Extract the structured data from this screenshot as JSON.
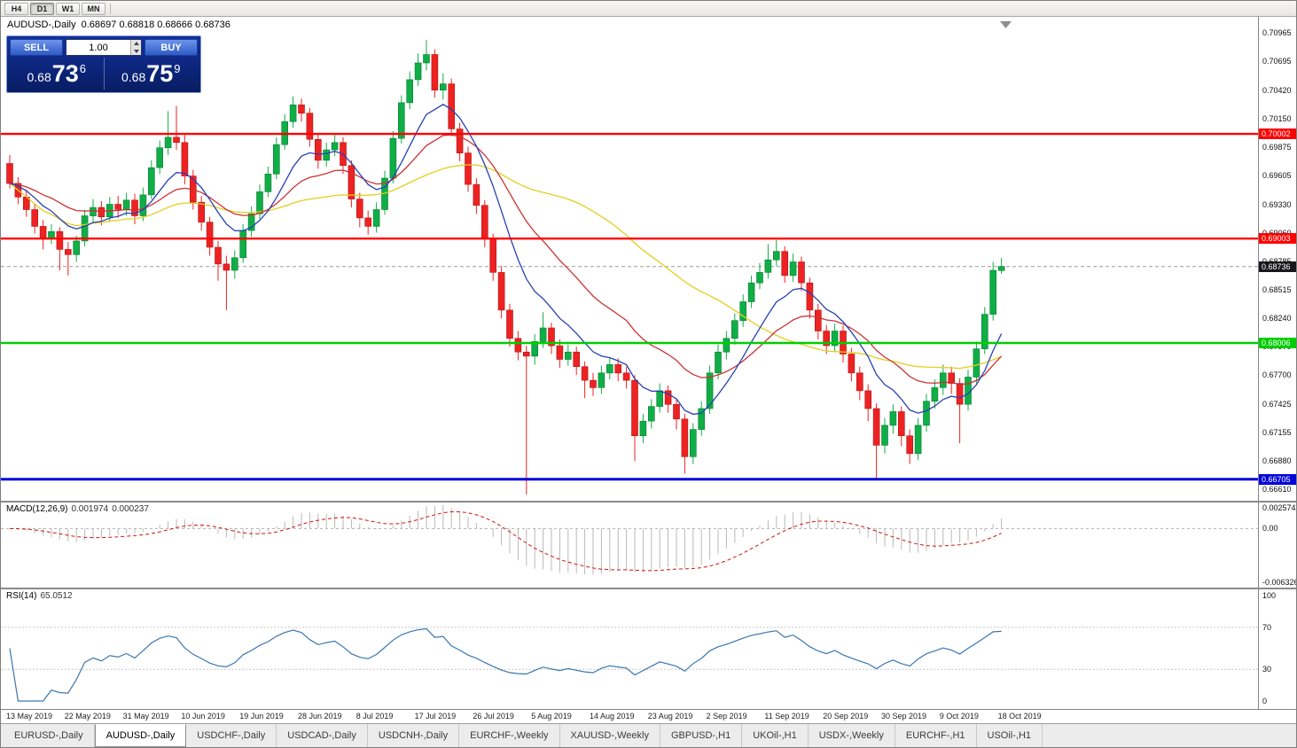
{
  "toolbar": {
    "timeframes": [
      "H4",
      "D1",
      "W1",
      "MN"
    ],
    "active_timeframe": "D1"
  },
  "chart": {
    "title_symbol": "AUDUSD-,Daily",
    "title_ohlc": "0.68697 0.68818 0.68666 0.68736"
  },
  "trade_panel": {
    "sell_label": "SELL",
    "buy_label": "BUY",
    "volume": "1.00",
    "sell_price": {
      "prefix": "0.68",
      "big": "73",
      "sup": "6"
    },
    "buy_price": {
      "prefix": "0.68",
      "big": "75",
      "sup": "9"
    }
  },
  "macd": {
    "name": "MACD(12,26,9)",
    "value_main": "0.001974",
    "value_signal": "0.000237"
  },
  "rsi": {
    "name": "RSI(14)",
    "value": "65.0512"
  },
  "tabs": [
    {
      "label": "EURUSD-,Daily",
      "active": false
    },
    {
      "label": "AUDUSD-,Daily",
      "active": true
    },
    {
      "label": "USDCHF-,Daily",
      "active": false
    },
    {
      "label": "USDCAD-,Daily",
      "active": false
    },
    {
      "label": "USDCNH-,Daily",
      "active": false
    },
    {
      "label": "EURCHF-,Weekly",
      "active": false
    },
    {
      "label": "XAUUSD-,Weekly",
      "active": false
    },
    {
      "label": "GBPUSD-,H1",
      "active": false
    },
    {
      "label": "UKOil-,H1",
      "active": false
    },
    {
      "label": "USDX-,Weekly",
      "active": false
    },
    {
      "label": "EURCHF-,H1",
      "active": false
    },
    {
      "label": "USOil-,H1",
      "active": false
    }
  ],
  "chart_data": {
    "type": "candlestick",
    "symbol": "AUDUSD",
    "timeframe": "Daily",
    "price_range": [
      0.665,
      0.7112
    ],
    "price_ticks": [
      "0.70965",
      "0.70695",
      "0.70420",
      "0.70150",
      "0.69875",
      "0.69605",
      "0.69330",
      "0.69060",
      "0.68785",
      "0.68515",
      "0.68240",
      "0.67970",
      "0.67700",
      "0.67425",
      "0.67155",
      "0.66880",
      "0.66610"
    ],
    "date_labels": [
      "13 May 2019",
      "22 May 2019",
      "31 May 2019",
      "10 Jun 2019",
      "19 Jun 2019",
      "28 Jun 2019",
      "8 Jul 2019",
      "17 Jul 2019",
      "26 Jul 2019",
      "5 Aug 2019",
      "14 Aug 2019",
      "23 Aug 2019",
      "2 Sep 2019",
      "11 Sep 2019",
      "20 Sep 2019",
      "30 Sep 2019",
      "9 Oct 2019",
      "18 Oct 2019"
    ],
    "candles_per_label": 7,
    "current_price": {
      "value": 0.68736,
      "label": "0.68736",
      "badge_color": "#17171c"
    },
    "levels": [
      {
        "label": "0.70002",
        "value": 0.70002,
        "color": "#ff0000",
        "line_width": 2.4
      },
      {
        "label": "0.69003",
        "value": 0.69003,
        "color": "#ff0000",
        "line_width": 2.4
      },
      {
        "label": "0.68006",
        "value": 0.68006,
        "color": "#00ce00",
        "line_width": 2.4
      },
      {
        "label": "0.66705",
        "value": 0.66705,
        "color": "#0000dd",
        "line_width": 3
      }
    ],
    "colors": {
      "bull": "#0fae46",
      "bull_edge": "#0a7c32",
      "bear": "#ee2222",
      "bear_edge": "#b01414"
    },
    "moving_averages": [
      {
        "type": "ema",
        "period": 9,
        "color": "#2741b5"
      },
      {
        "type": "ema",
        "period": 21,
        "color": "#cc3333"
      },
      {
        "type": "sma",
        "period": 40,
        "color": "#e3cf1c"
      }
    ],
    "macd_indicator": {
      "fast": 12,
      "slow": 26,
      "signal": 9,
      "range": [
        -0.0068,
        0.003
      ],
      "histogram_color": "#b9b9b9",
      "signal_color": "#cf1212",
      "axis_ticks": [
        {
          "text": "0.002574",
          "value": 0.002574
        },
        {
          "text": "0.00",
          "value": 0
        },
        {
          "text": "-0.006326",
          "value": -0.006326
        }
      ]
    },
    "rsi_indicator": {
      "period": 14,
      "color": "#3b76b0",
      "guide_levels": [
        70,
        30
      ],
      "axis_ticks": [
        {
          "text": "100",
          "value": 100
        },
        {
          "text": "70",
          "value": 70
        },
        {
          "text": "30",
          "value": 30
        },
        {
          "text": "0",
          "value": 0
        }
      ]
    },
    "candles_ohlc": [
      [
        0.6972,
        0.698,
        0.6948,
        0.6953
      ],
      [
        0.6953,
        0.6959,
        0.6933,
        0.694
      ],
      [
        0.694,
        0.6947,
        0.6921,
        0.6928
      ],
      [
        0.6928,
        0.6933,
        0.6905,
        0.6912
      ],
      [
        0.6912,
        0.6918,
        0.689,
        0.6901
      ],
      [
        0.6901,
        0.6914,
        0.6895,
        0.6907
      ],
      [
        0.6907,
        0.6911,
        0.687,
        0.689
      ],
      [
        0.689,
        0.6897,
        0.6865,
        0.6885
      ],
      [
        0.6885,
        0.6903,
        0.6878,
        0.6898
      ],
      [
        0.6898,
        0.6928,
        0.6893,
        0.6922
      ],
      [
        0.6922,
        0.6938,
        0.6916,
        0.693
      ],
      [
        0.693,
        0.6936,
        0.6913,
        0.6921
      ],
      [
        0.6921,
        0.694,
        0.6916,
        0.6933
      ],
      [
        0.6933,
        0.6941,
        0.692,
        0.6928
      ],
      [
        0.6928,
        0.6944,
        0.6922,
        0.6937
      ],
      [
        0.6937,
        0.6943,
        0.6914,
        0.6922
      ],
      [
        0.6922,
        0.6949,
        0.6917,
        0.6942
      ],
      [
        0.6942,
        0.6975,
        0.6938,
        0.6968
      ],
      [
        0.6968,
        0.6994,
        0.6962,
        0.6987
      ],
      [
        0.6987,
        0.7022,
        0.698,
        0.6997
      ],
      [
        0.6997,
        0.7027,
        0.6985,
        0.6992
      ],
      [
        0.6992,
        0.6999,
        0.6952,
        0.696
      ],
      [
        0.696,
        0.6966,
        0.6928,
        0.6935
      ],
      [
        0.6935,
        0.6941,
        0.6908,
        0.6916
      ],
      [
        0.6916,
        0.6921,
        0.6884,
        0.6892
      ],
      [
        0.6892,
        0.6898,
        0.686,
        0.6876
      ],
      [
        0.6876,
        0.6884,
        0.6832,
        0.687
      ],
      [
        0.687,
        0.6889,
        0.6862,
        0.6882
      ],
      [
        0.6882,
        0.6914,
        0.6877,
        0.6908
      ],
      [
        0.6908,
        0.6931,
        0.6902,
        0.6924
      ],
      [
        0.6924,
        0.6952,
        0.6919,
        0.6945
      ],
      [
        0.6945,
        0.6969,
        0.694,
        0.6962
      ],
      [
        0.6962,
        0.6997,
        0.6957,
        0.699
      ],
      [
        0.699,
        0.7019,
        0.6985,
        0.7012
      ],
      [
        0.7012,
        0.7036,
        0.7006,
        0.7028
      ],
      [
        0.7028,
        0.7034,
        0.7012,
        0.702
      ],
      [
        0.702,
        0.7025,
        0.6988,
        0.6995
      ],
      [
        0.6995,
        0.7001,
        0.6967,
        0.6975
      ],
      [
        0.6975,
        0.6992,
        0.6969,
        0.6985
      ],
      [
        0.6985,
        0.6999,
        0.6979,
        0.6992
      ],
      [
        0.6992,
        0.6997,
        0.6962,
        0.697
      ],
      [
        0.697,
        0.6975,
        0.693,
        0.6938
      ],
      [
        0.6938,
        0.6944,
        0.6911,
        0.692
      ],
      [
        0.692,
        0.6927,
        0.6904,
        0.6912
      ],
      [
        0.6912,
        0.6935,
        0.6906,
        0.6928
      ],
      [
        0.6928,
        0.6965,
        0.6923,
        0.6958
      ],
      [
        0.6958,
        0.7003,
        0.6953,
        0.6996
      ],
      [
        0.6996,
        0.7037,
        0.6991,
        0.703
      ],
      [
        0.703,
        0.706,
        0.7024,
        0.7052
      ],
      [
        0.7052,
        0.7077,
        0.7046,
        0.7068
      ],
      [
        0.7068,
        0.709,
        0.7061,
        0.7076
      ],
      [
        0.7076,
        0.7081,
        0.7035,
        0.7042
      ],
      [
        0.7042,
        0.7058,
        0.7033,
        0.7048
      ],
      [
        0.7048,
        0.7053,
        0.6998,
        0.7005
      ],
      [
        0.7005,
        0.7011,
        0.6974,
        0.6982
      ],
      [
        0.6982,
        0.6988,
        0.6945,
        0.6952
      ],
      [
        0.6952,
        0.6958,
        0.6924,
        0.6932
      ],
      [
        0.6932,
        0.6937,
        0.6892,
        0.69
      ],
      [
        0.69,
        0.6905,
        0.686,
        0.6868
      ],
      [
        0.6868,
        0.6874,
        0.6824,
        0.6832
      ],
      [
        0.6832,
        0.6838,
        0.6797,
        0.6805
      ],
      [
        0.6805,
        0.6812,
        0.6784,
        0.6792
      ],
      [
        0.6792,
        0.6798,
        0.6656,
        0.6788
      ],
      [
        0.6788,
        0.6809,
        0.678,
        0.6802
      ],
      [
        0.6802,
        0.683,
        0.6796,
        0.6815
      ],
      [
        0.6815,
        0.682,
        0.679,
        0.6798
      ],
      [
        0.6798,
        0.6804,
        0.6777,
        0.6785
      ],
      [
        0.6785,
        0.6799,
        0.6779,
        0.6792
      ],
      [
        0.6792,
        0.6797,
        0.677,
        0.6778
      ],
      [
        0.6778,
        0.6783,
        0.6748,
        0.6765
      ],
      [
        0.6765,
        0.6772,
        0.675,
        0.6758
      ],
      [
        0.6758,
        0.6779,
        0.6752,
        0.6772
      ],
      [
        0.6772,
        0.6787,
        0.6766,
        0.678
      ],
      [
        0.678,
        0.6786,
        0.6764,
        0.6772
      ],
      [
        0.6772,
        0.6778,
        0.6757,
        0.6765
      ],
      [
        0.6765,
        0.677,
        0.6688,
        0.6712
      ],
      [
        0.6712,
        0.6733,
        0.6705,
        0.6726
      ],
      [
        0.6726,
        0.6747,
        0.6719,
        0.674
      ],
      [
        0.674,
        0.6762,
        0.6734,
        0.6755
      ],
      [
        0.6755,
        0.676,
        0.6734,
        0.6742
      ],
      [
        0.6742,
        0.6748,
        0.6718,
        0.6728
      ],
      [
        0.6728,
        0.6733,
        0.6676,
        0.6692
      ],
      [
        0.6692,
        0.6724,
        0.6685,
        0.6718
      ],
      [
        0.6718,
        0.6745,
        0.6712,
        0.6738
      ],
      [
        0.6738,
        0.6779,
        0.6733,
        0.6772
      ],
      [
        0.6772,
        0.6799,
        0.6766,
        0.6792
      ],
      [
        0.6792,
        0.6812,
        0.6785,
        0.6805
      ],
      [
        0.6805,
        0.6829,
        0.6799,
        0.6822
      ],
      [
        0.6822,
        0.6847,
        0.6816,
        0.684
      ],
      [
        0.684,
        0.6865,
        0.6834,
        0.6858
      ],
      [
        0.6858,
        0.6877,
        0.6852,
        0.6868
      ],
      [
        0.6868,
        0.6895,
        0.6862,
        0.688
      ],
      [
        0.688,
        0.6899,
        0.6874,
        0.6888
      ],
      [
        0.6888,
        0.6893,
        0.6858,
        0.6865
      ],
      [
        0.6865,
        0.6886,
        0.6859,
        0.6878
      ],
      [
        0.6878,
        0.6883,
        0.685,
        0.6858
      ],
      [
        0.6858,
        0.6863,
        0.6824,
        0.6832
      ],
      [
        0.6832,
        0.6838,
        0.6804,
        0.6812
      ],
      [
        0.6812,
        0.6818,
        0.679,
        0.6798
      ],
      [
        0.6798,
        0.6819,
        0.6792,
        0.6812
      ],
      [
        0.6812,
        0.6817,
        0.6782,
        0.679
      ],
      [
        0.679,
        0.6796,
        0.6764,
        0.6772
      ],
      [
        0.6772,
        0.6778,
        0.6746,
        0.6755
      ],
      [
        0.6755,
        0.6761,
        0.6726,
        0.6738
      ],
      [
        0.6738,
        0.6743,
        0.667,
        0.6703
      ],
      [
        0.6703,
        0.6729,
        0.6695,
        0.6722
      ],
      [
        0.6722,
        0.6742,
        0.6714,
        0.6735
      ],
      [
        0.6735,
        0.674,
        0.6702,
        0.6712
      ],
      [
        0.6712,
        0.6718,
        0.6685,
        0.6695
      ],
      [
        0.6695,
        0.6729,
        0.6689,
        0.6722
      ],
      [
        0.6722,
        0.6752,
        0.6716,
        0.6745
      ],
      [
        0.6745,
        0.6766,
        0.6738,
        0.6758
      ],
      [
        0.6758,
        0.678,
        0.6751,
        0.6772
      ],
      [
        0.6772,
        0.6778,
        0.6752,
        0.6762
      ],
      [
        0.6762,
        0.6767,
        0.6705,
        0.6742
      ],
      [
        0.6742,
        0.6775,
        0.6736,
        0.6768
      ],
      [
        0.6768,
        0.6802,
        0.6762,
        0.6795
      ],
      [
        0.6795,
        0.6835,
        0.679,
        0.6828
      ],
      [
        0.6828,
        0.6878,
        0.6822,
        0.687
      ],
      [
        0.68697,
        0.68818,
        0.68666,
        0.68736
      ]
    ]
  }
}
